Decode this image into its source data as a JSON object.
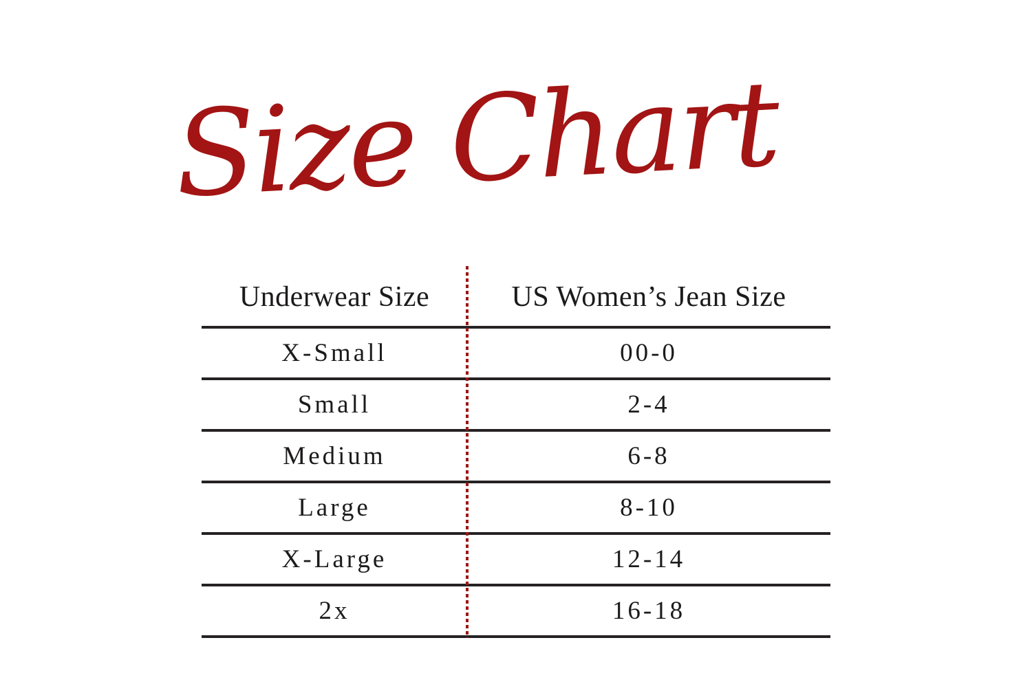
{
  "page": {
    "background_color": "#ffffff",
    "text_color": "#1c1a1a",
    "rule_color": "#262223"
  },
  "title": {
    "text": "Size Chart",
    "color": "#A31414"
  },
  "table": {
    "divider_color": "#9E1717",
    "columns": [
      "Underwear Size",
      "US Women’s Jean Size"
    ],
    "rows": [
      {
        "underwear_size": "X-Small",
        "jean_size": "00-0"
      },
      {
        "underwear_size": "Small",
        "jean_size": "2-4"
      },
      {
        "underwear_size": "Medium",
        "jean_size": "6-8"
      },
      {
        "underwear_size": "Large",
        "jean_size": "8-10"
      },
      {
        "underwear_size": "X-Large",
        "jean_size": "12-14"
      },
      {
        "underwear_size": "2x",
        "jean_size": "16-18"
      }
    ]
  },
  "chart_data": {
    "type": "table",
    "title": "Size Chart",
    "columns": [
      "Underwear Size",
      "US Women’s Jean Size"
    ],
    "rows": [
      [
        "X-Small",
        "00-0"
      ],
      [
        "Small",
        "2-4"
      ],
      [
        "Medium",
        "6-8"
      ],
      [
        "Large",
        "8-10"
      ],
      [
        "X-Large",
        "12-14"
      ],
      [
        "2x",
        "16-18"
      ]
    ],
    "layout": {
      "title_style": "red handwritten script, top center",
      "column_divider": "red dotted vertical line",
      "row_separators": "solid dark horizontal lines",
      "grid": "horizontal rules only"
    }
  }
}
